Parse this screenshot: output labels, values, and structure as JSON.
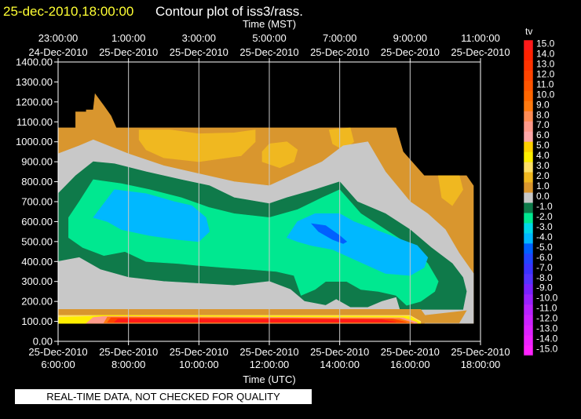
{
  "header": {
    "timestamp": "25-dec-2010,18:00:00",
    "title": "Contour plot of iss3/rass."
  },
  "footer": {
    "notice": "REAL-TIME DATA, NOT CHECKED FOR QUALITY"
  },
  "chart_data": {
    "type": "contour",
    "top_axis": {
      "label": "Time (MST)",
      "ticks": [
        {
          "time": "23:00:00",
          "date": "24-Dec-2010"
        },
        {
          "time": "1:00:00",
          "date": "25-Dec-2010"
        },
        {
          "time": "3:00:00",
          "date": "25-Dec-2010"
        },
        {
          "time": "5:00:00",
          "date": "25-Dec-2010"
        },
        {
          "time": "7:00:00",
          "date": "25-Dec-2010"
        },
        {
          "time": "9:00:00",
          "date": "25-Dec-2010"
        },
        {
          "time": "11:00:00",
          "date": "25-Dec-2010"
        }
      ]
    },
    "bottom_axis": {
      "label": "Time (UTC)",
      "ticks": [
        {
          "date": "25-Dec-2010",
          "time": "6:00:00"
        },
        {
          "date": "25-Dec-2010",
          "time": "8:00:00"
        },
        {
          "date": "25-Dec-2010",
          "time": "10:00:00"
        },
        {
          "date": "25-Dec-2010",
          "time": "12:00:00"
        },
        {
          "date": "25-Dec-2010",
          "time": "14:00:00"
        },
        {
          "date": "25-Dec-2010",
          "time": "16:00:00"
        },
        {
          "date": "25-Dec-2010",
          "time": "18:00:00"
        }
      ]
    },
    "y_axis": {
      "ticks": [
        "0.00",
        "100.00",
        "200.00",
        "300.00",
        "400.00",
        "500.00",
        "600.00",
        "700.00",
        "800.00",
        "900.00",
        "1000.00",
        "1100.00",
        "1200.00",
        "1300.00",
        "1400.00"
      ],
      "range": [
        0,
        1400
      ]
    },
    "x_range_hours_utc": [
      6,
      18
    ],
    "grid": "vertical lines at tick hours",
    "colorbar": {
      "label": "tv",
      "levels": [
        {
          "label": "15.0",
          "color": "#ff1a1a"
        },
        {
          "label": "14.0",
          "color": "#ff2200"
        },
        {
          "label": "13.0",
          "color": "#ff3300"
        },
        {
          "label": "12.0",
          "color": "#ff4400"
        },
        {
          "label": "11.0",
          "color": "#ff5500"
        },
        {
          "label": "10.0",
          "color": "#ff6600"
        },
        {
          "label": "9.0",
          "color": "#ff7a10"
        },
        {
          "label": "8.0",
          "color": "#ff8c55"
        },
        {
          "label": "7.0",
          "color": "#ff9a8a"
        },
        {
          "label": "6.0",
          "color": "#ffa8a8"
        },
        {
          "label": "5.0",
          "color": "#ffd000"
        },
        {
          "label": "4.0",
          "color": "#ffee00"
        },
        {
          "label": "3.0",
          "color": "#ffe066"
        },
        {
          "label": "2.0",
          "color": "#f0b820"
        },
        {
          "label": "1.0",
          "color": "#d9962e"
        },
        {
          "label": "0.0",
          "color": "#c8c8c8"
        },
        {
          "label": "-1.0",
          "color": "#0f7a4a"
        },
        {
          "label": "-2.0",
          "color": "#00e890"
        },
        {
          "label": "-3.0",
          "color": "#00d8e8"
        },
        {
          "label": "-4.0",
          "color": "#00b8ff"
        },
        {
          "label": "-5.0",
          "color": "#0060ff"
        },
        {
          "label": "-6.0",
          "color": "#2244ff"
        },
        {
          "label": "-7.0",
          "color": "#3b33ff"
        },
        {
          "label": "-8.0",
          "color": "#5533ff"
        },
        {
          "label": "-9.0",
          "color": "#7a22ff"
        },
        {
          "label": "-10.0",
          "color": "#9a22ff"
        },
        {
          "label": "-11.0",
          "color": "#b822ff"
        },
        {
          "label": "-12.0",
          "color": "#cc22ff"
        },
        {
          "label": "-13.0",
          "color": "#dd22ff"
        },
        {
          "label": "-14.0",
          "color": "#ee22ff"
        },
        {
          "label": "-15.0",
          "color": "#ff22ff"
        }
      ]
    },
    "regions": [
      {
        "level": "1.0",
        "color": "#d9962e",
        "polygon": [
          [
            6.0,
            950
          ],
          [
            6.0,
            1070
          ],
          [
            6.5,
            1070
          ],
          [
            6.5,
            1150
          ],
          [
            6.8,
            1150
          ],
          [
            6.8,
            1160
          ],
          [
            7.0,
            1160
          ],
          [
            7.05,
            1240
          ],
          [
            7.3,
            1180
          ],
          [
            7.5,
            1130
          ],
          [
            7.65,
            1070
          ],
          [
            15.6,
            1070
          ],
          [
            15.8,
            950
          ],
          [
            16.4,
            830
          ],
          [
            17.6,
            830
          ],
          [
            17.8,
            780
          ],
          [
            17.8,
            90
          ],
          [
            6.0,
            90
          ]
        ]
      },
      {
        "level": "2.0",
        "color": "#f0b820",
        "polygon": [
          [
            8.3,
            1060
          ],
          [
            9.2,
            1060
          ],
          [
            10.0,
            1040
          ],
          [
            11.0,
            1045
          ],
          [
            11.6,
            1060
          ],
          [
            11.6,
            1000
          ],
          [
            11.2,
            930
          ],
          [
            10.0,
            900
          ],
          [
            9.0,
            920
          ],
          [
            8.5,
            960
          ],
          [
            8.3,
            1010
          ]
        ]
      },
      {
        "level": "2.0",
        "color": "#f0b820",
        "polygon": [
          [
            11.8,
            900
          ],
          [
            12.3,
            870
          ],
          [
            12.7,
            900
          ],
          [
            12.8,
            960
          ],
          [
            12.5,
            1000
          ],
          [
            12.0,
            990
          ],
          [
            11.8,
            950
          ]
        ]
      },
      {
        "level": "2.0",
        "color": "#f0b820",
        "polygon": [
          [
            13.7,
            1060
          ],
          [
            14.3,
            1070
          ],
          [
            14.4,
            1000
          ],
          [
            14.1,
            960
          ],
          [
            13.8,
            990
          ]
        ]
      },
      {
        "level": "2.0",
        "color": "#f0b820",
        "polygon": [
          [
            16.8,
            830
          ],
          [
            17.4,
            830
          ],
          [
            17.5,
            760
          ],
          [
            17.2,
            680
          ],
          [
            16.9,
            720
          ]
        ]
      },
      {
        "level": "0.0",
        "color": "#c8c8c8",
        "polygon": [
          [
            6.0,
            780
          ],
          [
            6.0,
            940
          ],
          [
            6.6,
            980
          ],
          [
            7.0,
            1010
          ],
          [
            8.0,
            940
          ],
          [
            9.0,
            880
          ],
          [
            10.0,
            840
          ],
          [
            11.0,
            800
          ],
          [
            12.0,
            780
          ],
          [
            12.5,
            820
          ],
          [
            13.0,
            860
          ],
          [
            13.5,
            900
          ],
          [
            14.1,
            980
          ],
          [
            14.8,
            1000
          ],
          [
            15.3,
            850
          ],
          [
            16.0,
            700
          ],
          [
            16.5,
            640
          ],
          [
            17.0,
            560
          ],
          [
            17.4,
            440
          ],
          [
            17.8,
            340
          ],
          [
            17.8,
            160
          ],
          [
            16.3,
            130
          ],
          [
            16.3,
            90
          ],
          [
            17.4,
            90
          ],
          [
            17.6,
            150
          ],
          [
            17.8,
            200
          ],
          [
            17.8,
            90
          ],
          [
            6.0,
            90
          ]
        ]
      },
      {
        "level": "-1.0",
        "color": "#0f7a4a",
        "polygon": [
          [
            6.0,
            470
          ],
          [
            6.0,
            740
          ],
          [
            6.5,
            830
          ],
          [
            7.0,
            900
          ],
          [
            7.6,
            890
          ],
          [
            8.5,
            850
          ],
          [
            9.5,
            810
          ],
          [
            10.3,
            780
          ],
          [
            11.0,
            720
          ],
          [
            12.0,
            690
          ],
          [
            12.5,
            720
          ],
          [
            13.3,
            760
          ],
          [
            14.0,
            800
          ],
          [
            14.5,
            700
          ],
          [
            15.3,
            640
          ],
          [
            16.0,
            560
          ],
          [
            16.6,
            470
          ],
          [
            17.2,
            390
          ],
          [
            17.5,
            320
          ],
          [
            17.6,
            250
          ],
          [
            17.5,
            160
          ],
          [
            6.0,
            160
          ]
        ]
      },
      {
        "level": "0.0",
        "color": "#c8c8c8",
        "polygon": [
          [
            6.0,
            230
          ],
          [
            6.0,
            400
          ],
          [
            6.6,
            420
          ],
          [
            7.2,
            360
          ],
          [
            8.0,
            320
          ],
          [
            9.0,
            300
          ],
          [
            10.0,
            290
          ],
          [
            11.0,
            280
          ],
          [
            12.0,
            300
          ],
          [
            12.6,
            260
          ],
          [
            13.0,
            200
          ],
          [
            13.6,
            180
          ],
          [
            13.9,
            210
          ],
          [
            14.3,
            170
          ],
          [
            14.8,
            170
          ],
          [
            15.2,
            200
          ],
          [
            15.6,
            220
          ],
          [
            15.7,
            160
          ],
          [
            6.0,
            160
          ]
        ]
      },
      {
        "level": "-2.0",
        "color": "#00e890",
        "polygon": [
          [
            6.3,
            620
          ],
          [
            6.6,
            700
          ],
          [
            7.0,
            810
          ],
          [
            7.8,
            790
          ],
          [
            8.6,
            760
          ],
          [
            9.5,
            720
          ],
          [
            10.3,
            670
          ],
          [
            11.0,
            640
          ],
          [
            12.0,
            620
          ],
          [
            12.8,
            660
          ],
          [
            13.5,
            720
          ],
          [
            14.0,
            760
          ],
          [
            14.6,
            640
          ],
          [
            15.3,
            560
          ],
          [
            16.0,
            480
          ],
          [
            16.5,
            390
          ],
          [
            16.8,
            300
          ],
          [
            16.7,
            250
          ],
          [
            16.3,
            200
          ],
          [
            15.9,
            180
          ],
          [
            15.6,
            230
          ],
          [
            15.1,
            250
          ],
          [
            14.6,
            260
          ],
          [
            14.2,
            300
          ],
          [
            13.6,
            300
          ],
          [
            13.3,
            260
          ],
          [
            12.9,
            230
          ],
          [
            12.7,
            330
          ],
          [
            12.2,
            350
          ],
          [
            11.5,
            360
          ],
          [
            10.7,
            370
          ],
          [
            10.0,
            380
          ],
          [
            9.4,
            390
          ],
          [
            8.5,
            400
          ],
          [
            7.9,
            450
          ],
          [
            7.3,
            430
          ],
          [
            6.7,
            470
          ],
          [
            6.3,
            520
          ]
        ]
      },
      {
        "level": "-4.0",
        "color": "#00b8ff",
        "polygon": [
          [
            7.0,
            620
          ],
          [
            7.6,
            760
          ],
          [
            8.5,
            740
          ],
          [
            9.3,
            700
          ],
          [
            9.8,
            680
          ],
          [
            10.2,
            620
          ],
          [
            10.3,
            550
          ],
          [
            10.0,
            500
          ],
          [
            9.4,
            510
          ],
          [
            8.6,
            530
          ],
          [
            7.8,
            560
          ],
          [
            7.4,
            600
          ]
        ]
      },
      {
        "level": "-4.0",
        "color": "#00b8ff",
        "polygon": [
          [
            12.5,
            520
          ],
          [
            12.8,
            600
          ],
          [
            13.3,
            640
          ],
          [
            14.0,
            640
          ],
          [
            14.4,
            600
          ],
          [
            15.0,
            560
          ],
          [
            15.6,
            520
          ],
          [
            16.2,
            480
          ],
          [
            16.5,
            420
          ],
          [
            16.4,
            370
          ],
          [
            16.0,
            330
          ],
          [
            15.3,
            340
          ],
          [
            14.8,
            380
          ],
          [
            14.3,
            420
          ],
          [
            13.8,
            460
          ],
          [
            13.2,
            480
          ],
          [
            12.8,
            500
          ]
        ]
      },
      {
        "level": "-5.0",
        "color": "#0060ff",
        "polygon": [
          [
            13.2,
            590
          ],
          [
            13.6,
            580
          ],
          [
            14.0,
            530
          ],
          [
            14.2,
            500
          ],
          [
            14.1,
            490
          ],
          [
            13.8,
            510
          ],
          [
            13.4,
            550
          ]
        ]
      },
      {
        "level": "1.0",
        "color": "#d9962e",
        "polygon": [
          [
            6.0,
            90
          ],
          [
            6.0,
            160
          ],
          [
            16.3,
            160
          ],
          [
            16.5,
            110
          ],
          [
            16.4,
            90
          ]
        ]
      },
      {
        "level": "3.0",
        "color": "#ffe066",
        "polygon": [
          [
            6.0,
            90
          ],
          [
            6.0,
            130
          ],
          [
            16.0,
            130
          ],
          [
            16.3,
            100
          ],
          [
            16.3,
            90
          ]
        ]
      },
      {
        "level": "4.0",
        "color": "#ffee00",
        "polygon": [
          [
            6.0,
            90
          ],
          [
            6.0,
            120
          ],
          [
            6.9,
            125
          ],
          [
            7.2,
            130
          ],
          [
            16.0,
            125
          ],
          [
            16.3,
            92
          ],
          [
            16.3,
            90
          ]
        ]
      },
      {
        "level": "7.0",
        "color": "#ff9a8a",
        "polygon": [
          [
            6.8,
            90
          ],
          [
            7.0,
            120
          ],
          [
            7.3,
            125
          ],
          [
            15.8,
            118
          ],
          [
            16.2,
            95
          ],
          [
            16.2,
            90
          ]
        ]
      },
      {
        "level": "9.0",
        "color": "#ff7a10",
        "polygon": [
          [
            7.3,
            92
          ],
          [
            7.4,
            122
          ],
          [
            15.7,
            114
          ],
          [
            16.1,
            92
          ]
        ]
      },
      {
        "level": "12.0",
        "color": "#ff4400",
        "polygon": [
          [
            7.4,
            95
          ],
          [
            7.5,
            118
          ],
          [
            15.5,
            112
          ],
          [
            15.9,
            95
          ]
        ]
      },
      {
        "level": "15.0",
        "color": "#ff1a1a",
        "polygon": [
          [
            7.6,
            96
          ],
          [
            7.7,
            112
          ],
          [
            15.2,
            108
          ],
          [
            15.6,
            96
          ]
        ]
      }
    ]
  }
}
